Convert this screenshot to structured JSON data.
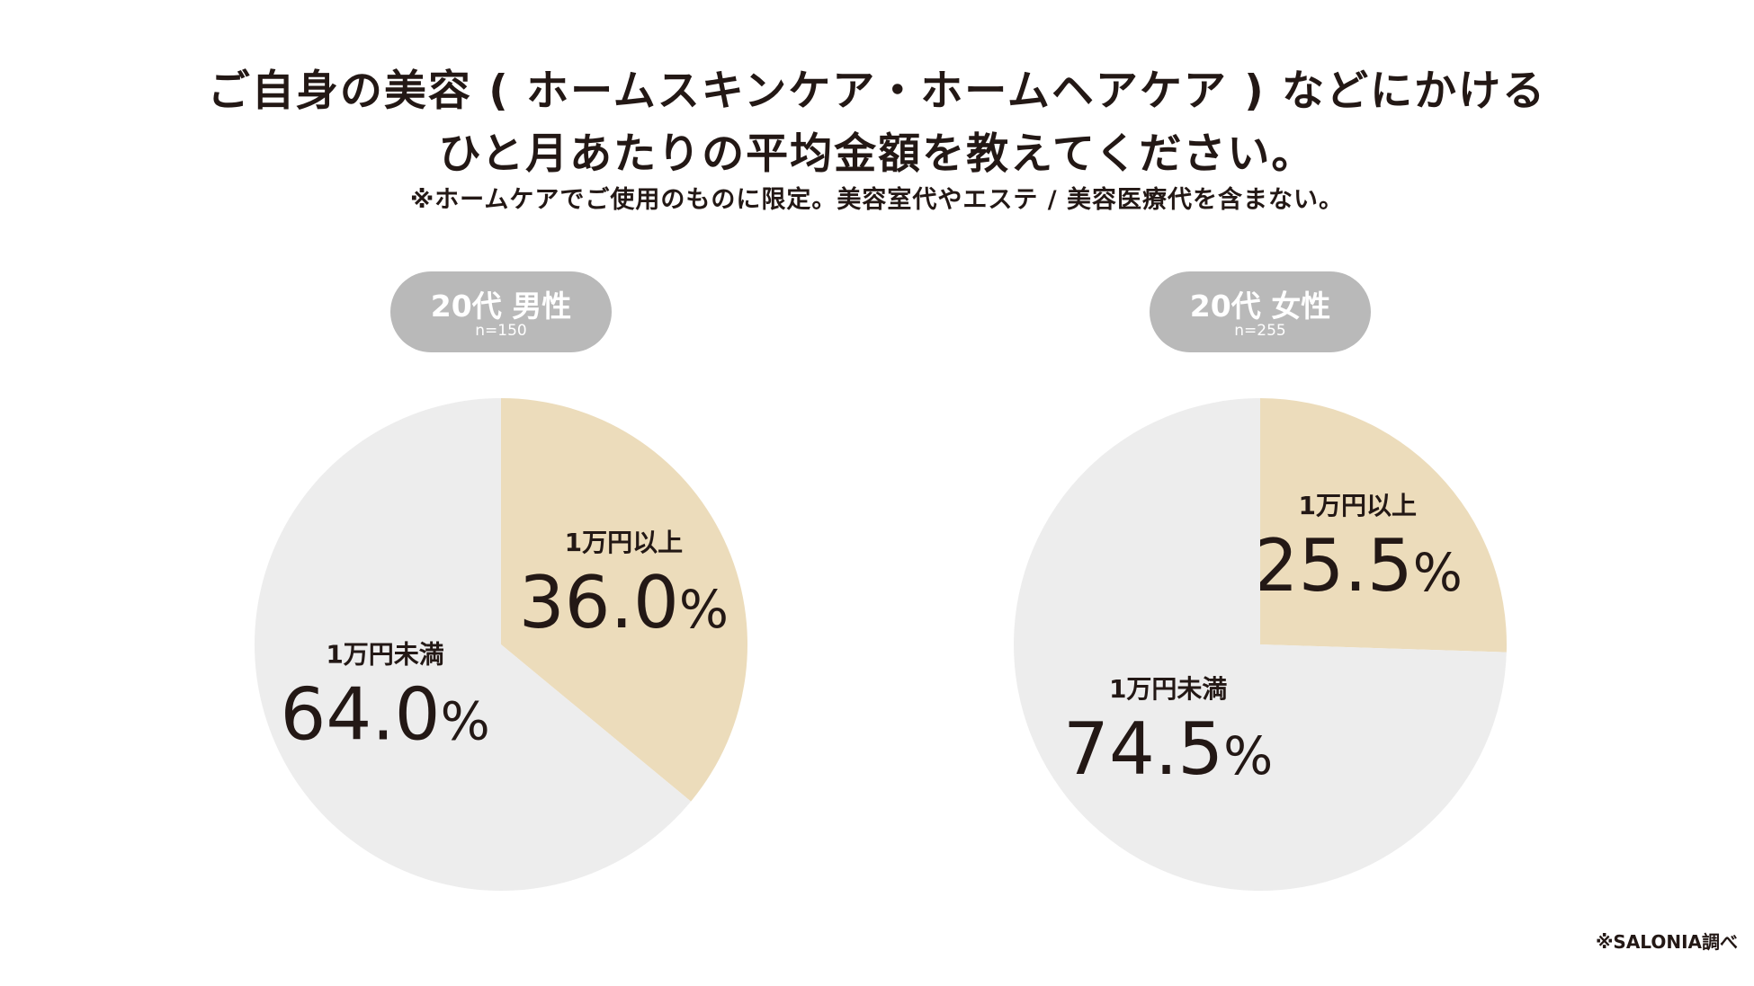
{
  "title": {
    "line1": "ご自身の美容 ( ホームスキンケア・ホームヘアケア ) などにかける",
    "line2": "ひと月あたりの平均金額を教えてください。",
    "note": "※ホームケアでご使用のものに限定。美容室代やエステ / 美容医療代を含まない。"
  },
  "source": "※SALONIA調べ",
  "colors": {
    "slice_highlight": "#ecdcbb",
    "slice_base": "#ededed",
    "pill_bg": "#b9b9b9",
    "text": "#231815"
  },
  "chart_data": [
    {
      "type": "pie",
      "group_label": "20代 男性",
      "n_label": "n=150",
      "categories": [
        "1万円以上",
        "1万円未満"
      ],
      "values": [
        36.0,
        64.0
      ],
      "value_labels": [
        "36.0",
        "64.0"
      ],
      "unit": "%"
    },
    {
      "type": "pie",
      "group_label": "20代 女性",
      "n_label": "n=255",
      "categories": [
        "1万円以上",
        "1万円未満"
      ],
      "values": [
        25.5,
        74.5
      ],
      "value_labels": [
        "25.5",
        "74.5"
      ],
      "unit": "%"
    }
  ]
}
